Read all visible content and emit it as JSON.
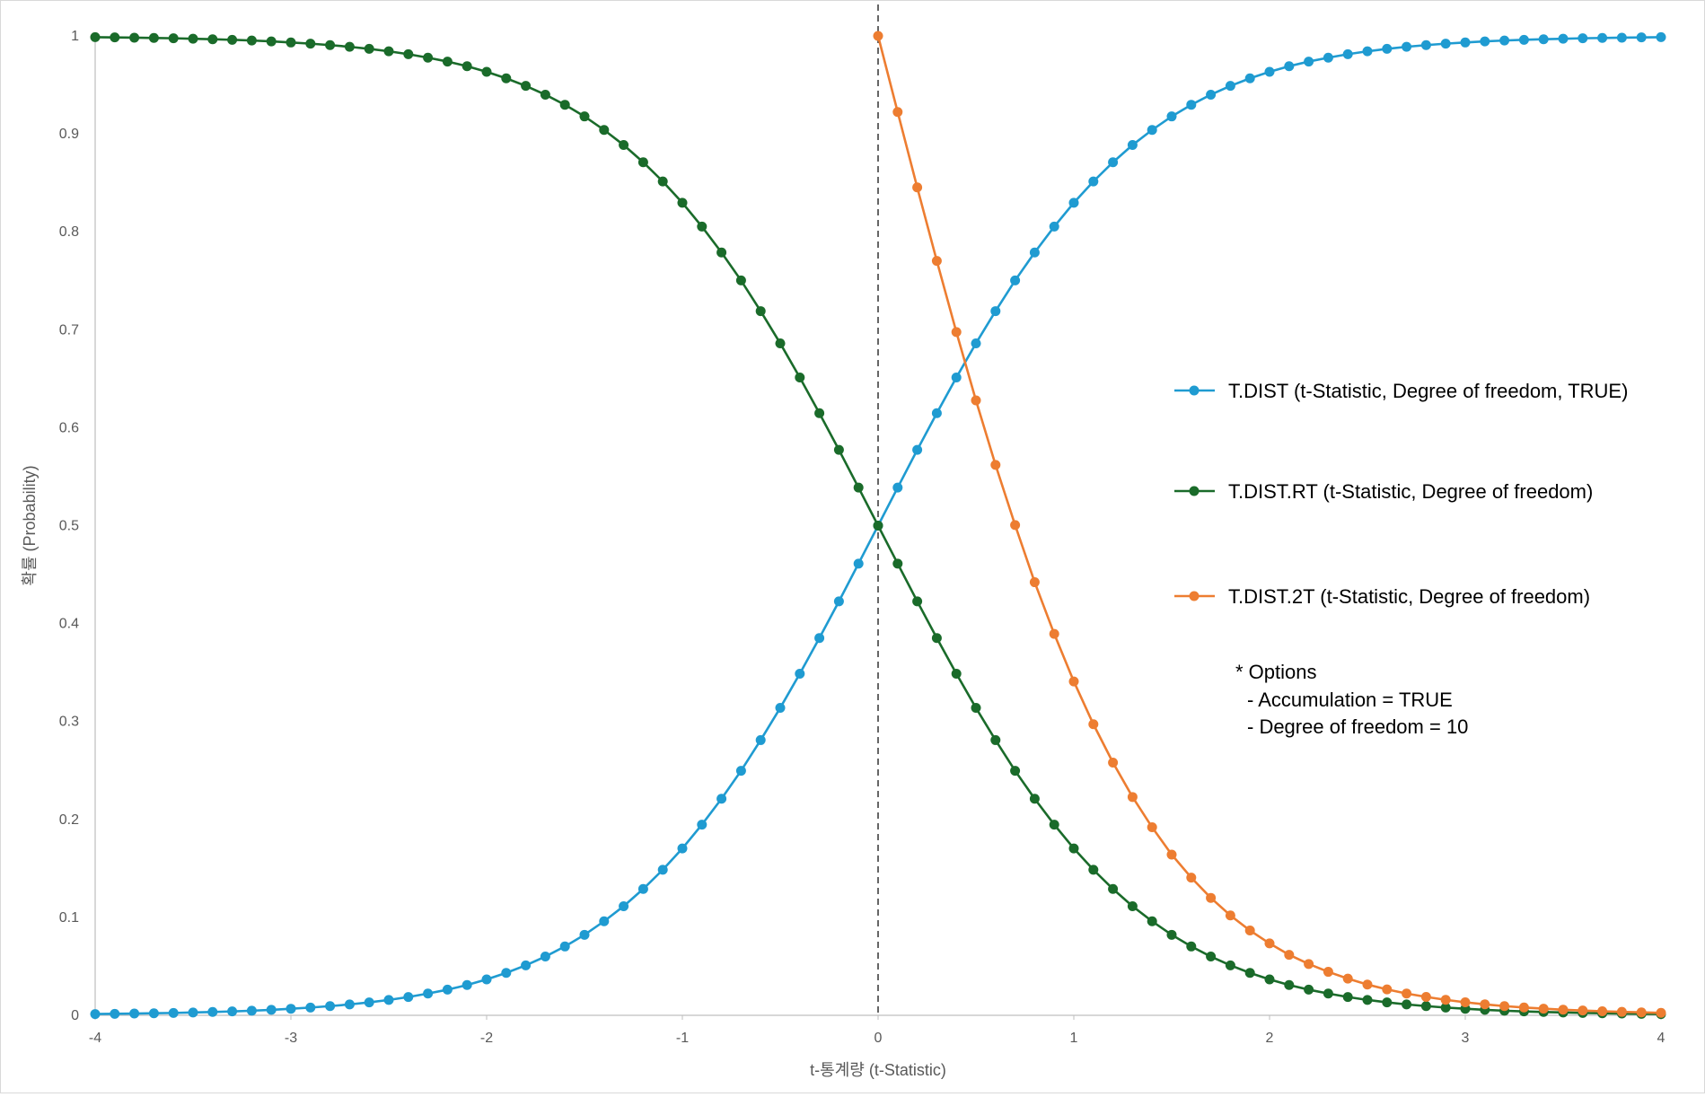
{
  "chart_data": {
    "type": "line",
    "xlabel": "t-통계량 (t-Statistic)",
    "ylabel": "확률 (Probability)",
    "xlim": [
      -4,
      4
    ],
    "ylim": [
      0,
      1
    ],
    "x_ticks": [
      "-4",
      "-3",
      "-2",
      "-1",
      "0",
      "1",
      "2",
      "3",
      "4"
    ],
    "y_ticks": [
      "0",
      "0.1",
      "0.2",
      "0.3",
      "0.4",
      "0.5",
      "0.6",
      "0.7",
      "0.8",
      "0.9",
      "1"
    ],
    "grid": false,
    "reference_line": {
      "x": 0,
      "style": "dashed"
    },
    "legend_position": "right",
    "series": [
      {
        "name": "T.DIST (t-Statistic, Degree of freedom, TRUE)",
        "color": "#1f9bd1",
        "x": [
          -4,
          -3.9,
          -3.8,
          -3.7,
          -3.6,
          -3.5,
          -3.4,
          -3.3,
          -3.2,
          -3.1,
          -3,
          -2.9,
          -2.8,
          -2.7,
          -2.6,
          -2.5,
          -2.4,
          -2.3,
          -2.2,
          -2.1,
          -2,
          -1.9,
          -1.8,
          -1.7,
          -1.6,
          -1.5,
          -1.4,
          -1.3,
          -1.2,
          -1.1,
          -1,
          -0.9,
          -0.8,
          -0.7,
          -0.6,
          -0.5,
          -0.4,
          -0.3,
          -0.2,
          -0.1,
          0,
          0.1,
          0.2,
          0.3,
          0.4,
          0.5,
          0.6,
          0.7,
          0.8,
          0.9,
          1,
          1.1,
          1.2,
          1.3,
          1.4,
          1.5,
          1.6,
          1.7,
          1.8,
          1.9,
          2,
          2.1,
          2.2,
          2.3,
          2.4,
          2.5,
          2.6,
          2.7,
          2.8,
          2.9,
          3,
          3.1,
          3.2,
          3.3,
          3.4,
          3.5,
          3.6,
          3.7,
          3.8,
          3.9,
          4
        ],
        "values": [
          0.0013,
          0.0015,
          0.0018,
          0.0021,
          0.0024,
          0.0029,
          0.0034,
          0.004,
          0.0047,
          0.0056,
          0.0067,
          0.0079,
          0.0094,
          0.0111,
          0.0132,
          0.0157,
          0.0187,
          0.0222,
          0.0262,
          0.0309,
          0.0367,
          0.0433,
          0.051,
          0.06,
          0.0703,
          0.0822,
          0.096,
          0.1114,
          0.129,
          0.1486,
          0.1704,
          0.1947,
          0.2211,
          0.2497,
          0.281,
          0.3139,
          0.3488,
          0.3852,
          0.4227,
          0.4612,
          0.5,
          0.5388,
          0.5773,
          0.6148,
          0.6512,
          0.6861,
          0.719,
          0.7503,
          0.7789,
          0.8053,
          0.8296,
          0.8514,
          0.871,
          0.8886,
          0.904,
          0.9178,
          0.9297,
          0.94,
          0.949,
          0.9567,
          0.9633,
          0.9691,
          0.9738,
          0.9778,
          0.9813,
          0.9843,
          0.9868,
          0.9889,
          0.9906,
          0.9921,
          0.9933,
          0.9944,
          0.9953,
          0.996,
          0.9966,
          0.9971,
          0.9976,
          0.9979,
          0.9982,
          0.9985,
          0.9987
        ]
      },
      {
        "name": "T.DIST.RT (t-Statistic, Degree of freedom)",
        "color": "#1a6b2a",
        "x": [
          -4,
          -3.9,
          -3.8,
          -3.7,
          -3.6,
          -3.5,
          -3.4,
          -3.3,
          -3.2,
          -3.1,
          -3,
          -2.9,
          -2.8,
          -2.7,
          -2.6,
          -2.5,
          -2.4,
          -2.3,
          -2.2,
          -2.1,
          -2,
          -1.9,
          -1.8,
          -1.7,
          -1.6,
          -1.5,
          -1.4,
          -1.3,
          -1.2,
          -1.1,
          -1,
          -0.9,
          -0.8,
          -0.7,
          -0.6,
          -0.5,
          -0.4,
          -0.3,
          -0.2,
          -0.1,
          0,
          0.1,
          0.2,
          0.3,
          0.4,
          0.5,
          0.6,
          0.7,
          0.8,
          0.9,
          1,
          1.1,
          1.2,
          1.3,
          1.4,
          1.5,
          1.6,
          1.7,
          1.8,
          1.9,
          2,
          2.1,
          2.2,
          2.3,
          2.4,
          2.5,
          2.6,
          2.7,
          2.8,
          2.9,
          3,
          3.1,
          3.2,
          3.3,
          3.4,
          3.5,
          3.6,
          3.7,
          3.8,
          3.9,
          4
        ],
        "values": [
          0.9987,
          0.9985,
          0.9982,
          0.9979,
          0.9976,
          0.9971,
          0.9966,
          0.996,
          0.9953,
          0.9944,
          0.9933,
          0.9921,
          0.9906,
          0.9889,
          0.9868,
          0.9843,
          0.9813,
          0.9778,
          0.9738,
          0.9691,
          0.9633,
          0.9567,
          0.949,
          0.94,
          0.9297,
          0.9178,
          0.904,
          0.8886,
          0.871,
          0.8514,
          0.8296,
          0.8053,
          0.7789,
          0.7503,
          0.719,
          0.6861,
          0.6512,
          0.6148,
          0.5773,
          0.5388,
          0.5,
          0.4612,
          0.4227,
          0.3852,
          0.3488,
          0.3139,
          0.281,
          0.2497,
          0.2211,
          0.1947,
          0.1704,
          0.1486,
          0.129,
          0.1114,
          0.096,
          0.0822,
          0.0703,
          0.06,
          0.051,
          0.0433,
          0.0367,
          0.0309,
          0.0262,
          0.0222,
          0.0187,
          0.0157,
          0.0132,
          0.0111,
          0.0094,
          0.0079,
          0.0067,
          0.0056,
          0.0047,
          0.004,
          0.0034,
          0.0029,
          0.0024,
          0.0021,
          0.0018,
          0.0015,
          0.0013
        ]
      },
      {
        "name": "T.DIST.2T (t-Statistic, Degree of freedom)",
        "color": "#ed7d31",
        "x": [
          0,
          0.1,
          0.2,
          0.3,
          0.4,
          0.5,
          0.6,
          0.7,
          0.8,
          0.9,
          1,
          1.1,
          1.2,
          1.3,
          1.4,
          1.5,
          1.6,
          1.7,
          1.8,
          1.9,
          2,
          2.1,
          2.2,
          2.3,
          2.4,
          2.5,
          2.6,
          2.7,
          2.8,
          2.9,
          3,
          3.1,
          3.2,
          3.3,
          3.4,
          3.5,
          3.6,
          3.7,
          3.8,
          3.9,
          4
        ],
        "values": [
          1.0,
          0.9223,
          0.8453,
          0.7703,
          0.6976,
          0.6279,
          0.562,
          0.5006,
          0.4422,
          0.3894,
          0.3409,
          0.2972,
          0.258,
          0.2229,
          0.192,
          0.1641,
          0.1406,
          0.1199,
          0.102,
          0.0866,
          0.0734,
          0.0618,
          0.0524,
          0.0444,
          0.0375,
          0.0314,
          0.0265,
          0.0222,
          0.0188,
          0.0158,
          0.0133,
          0.0112,
          0.0094,
          0.008,
          0.0068,
          0.0057,
          0.0049,
          0.0041,
          0.0035,
          0.003,
          0.0025
        ]
      }
    ],
    "note": {
      "title": "* Options",
      "lines": [
        "- Accumulation = TRUE",
        "- Degree of freedom = 10"
      ]
    }
  }
}
